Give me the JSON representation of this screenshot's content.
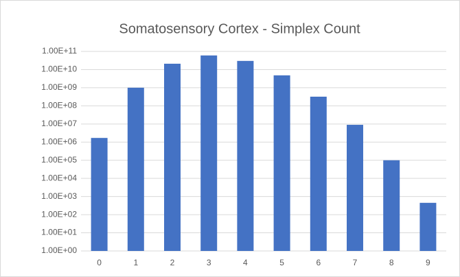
{
  "chart_data": {
    "type": "bar",
    "title": "Somatosensory Cortex - Simplex Count",
    "categories": [
      "0",
      "1",
      "2",
      "3",
      "4",
      "5",
      "6",
      "7",
      "8",
      "9"
    ],
    "values": [
      1700000,
      1000000000,
      21000000000,
      60000000000,
      30000000000,
      4800000000,
      320000000,
      9000000,
      100000,
      450
    ],
    "color": "#4472c4",
    "log_scale": true,
    "ylim": [
      1,
      100000000000
    ],
    "yticks": [
      {
        "value": 1,
        "label": "1.00E+00"
      },
      {
        "value": 10,
        "label": "1.00E+01"
      },
      {
        "value": 100,
        "label": "1.00E+02"
      },
      {
        "value": 1000,
        "label": "1.00E+03"
      },
      {
        "value": 10000,
        "label": "1.00E+04"
      },
      {
        "value": 100000,
        "label": "1.00E+05"
      },
      {
        "value": 1000000,
        "label": "1.00E+06"
      },
      {
        "value": 10000000,
        "label": "1.00E+07"
      },
      {
        "value": 100000000,
        "label": "1.00E+08"
      },
      {
        "value": 1000000000,
        "label": "1.00E+09"
      },
      {
        "value": 10000000000,
        "label": "1.00E+10"
      },
      {
        "value": 100000000000,
        "label": "1.00E+11"
      }
    ],
    "grid": true
  }
}
